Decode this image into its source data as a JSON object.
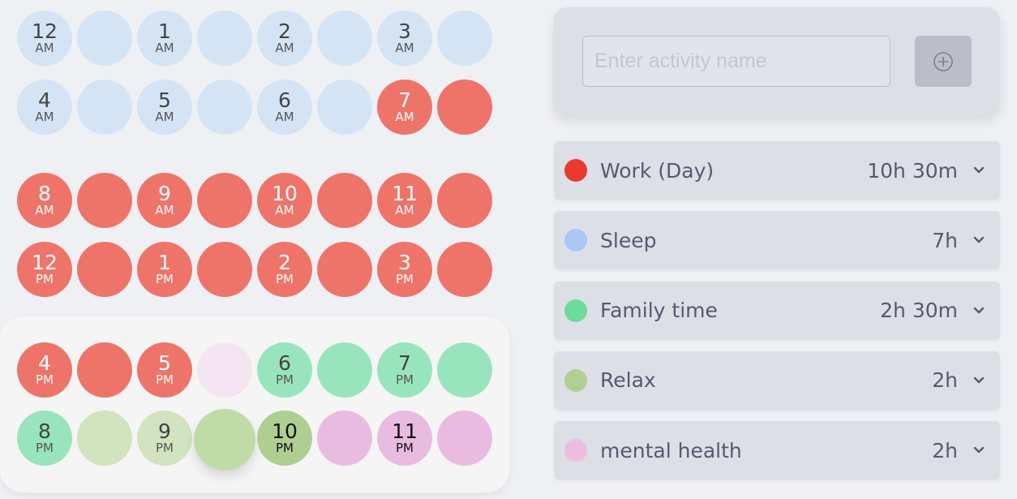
{
  "colors": {
    "sleep_slot": "#d4e4f5",
    "work_slot": "#ee746a",
    "family_slot": "#98e5bd",
    "relax_slot_light": "#d2e3bf",
    "relax_slot": "#c0dba8",
    "relax_slot_dark": "#aecf90",
    "mental_slot": "#eabbe0",
    "mental_slot_light": "#f5e4f2"
  },
  "slots": [
    {
      "hour": "12",
      "meridiem": "AM",
      "color": "#d4e4f5"
    },
    {
      "color": "#d4e4f5"
    },
    {
      "hour": "1",
      "meridiem": "AM",
      "color": "#d4e4f5"
    },
    {
      "color": "#d4e4f5"
    },
    {
      "hour": "2",
      "meridiem": "AM",
      "color": "#d4e4f5"
    },
    {
      "color": "#d4e4f5"
    },
    {
      "hour": "3",
      "meridiem": "AM",
      "color": "#d4e4f5"
    },
    {
      "color": "#d4e4f5"
    },
    {
      "hour": "4",
      "meridiem": "AM",
      "color": "#d4e4f5"
    },
    {
      "color": "#d4e4f5"
    },
    {
      "hour": "5",
      "meridiem": "AM",
      "color": "#d4e4f5"
    },
    {
      "color": "#d4e4f5"
    },
    {
      "hour": "6",
      "meridiem": "AM",
      "color": "#d4e4f5"
    },
    {
      "color": "#d4e4f5"
    },
    {
      "hour": "7",
      "meridiem": "AM",
      "color": "#ee746a",
      "text": "light"
    },
    {
      "color": "#ee746a"
    },
    {
      "hour": "8",
      "meridiem": "AM",
      "color": "#ee746a",
      "text": "light"
    },
    {
      "color": "#ee746a"
    },
    {
      "hour": "9",
      "meridiem": "AM",
      "color": "#ee746a",
      "text": "light"
    },
    {
      "color": "#ee746a"
    },
    {
      "hour": "10",
      "meridiem": "AM",
      "color": "#ee746a",
      "text": "light"
    },
    {
      "color": "#ee746a"
    },
    {
      "hour": "11",
      "meridiem": "AM",
      "color": "#ee746a",
      "text": "light"
    },
    {
      "color": "#ee746a"
    },
    {
      "hour": "12",
      "meridiem": "PM",
      "color": "#ee746a",
      "text": "light"
    },
    {
      "color": "#ee746a"
    },
    {
      "hour": "1",
      "meridiem": "PM",
      "color": "#ee746a",
      "text": "light"
    },
    {
      "color": "#ee746a"
    },
    {
      "hour": "2",
      "meridiem": "PM",
      "color": "#ee746a",
      "text": "light"
    },
    {
      "color": "#ee746a"
    },
    {
      "hour": "3",
      "meridiem": "PM",
      "color": "#ee746a",
      "text": "light"
    },
    {
      "color": "#ee746a"
    },
    {
      "hour": "4",
      "meridiem": "PM",
      "color": "#ee746a",
      "text": "light"
    },
    {
      "color": "#ee746a"
    },
    {
      "hour": "5",
      "meridiem": "PM",
      "color": "#ee746a",
      "text": "light"
    },
    {
      "color": "#f5e4f2"
    },
    {
      "hour": "6",
      "meridiem": "PM",
      "color": "#98e5bd"
    },
    {
      "color": "#98e5bd"
    },
    {
      "hour": "7",
      "meridiem": "PM",
      "color": "#98e5bd"
    },
    {
      "color": "#98e5bd"
    },
    {
      "hour": "8",
      "meridiem": "PM",
      "color": "#98e5bd"
    },
    {
      "color": "#d2e3bf"
    },
    {
      "hour": "9",
      "meridiem": "PM",
      "color": "#d2e3bf"
    },
    {
      "color": "#c0dba8",
      "hovered": true
    },
    {
      "hour": "10",
      "meridiem": "PM",
      "color": "#aecf90",
      "text": "dark"
    },
    {
      "color": "#eabbe0"
    },
    {
      "hour": "11",
      "meridiem": "PM",
      "color": "#eabbe0",
      "text": "dark"
    },
    {
      "color": "#eabbe0"
    }
  ],
  "new_activity": {
    "placeholder": "Enter activity name",
    "value": "",
    "add_icon": "plus-circle-icon"
  },
  "activities": [
    {
      "name": "Work (Day)",
      "duration": "10h 30m",
      "color": "#e93a2c"
    },
    {
      "name": "Sleep",
      "duration": "7h",
      "color": "#a8c8f5"
    },
    {
      "name": "Family time",
      "duration": "2h 30m",
      "color": "#6bdc9c"
    },
    {
      "name": "Relax",
      "duration": "2h",
      "color": "#b0d092"
    },
    {
      "name": "mental health",
      "duration": "2h",
      "color": "#ecbde0"
    }
  ]
}
